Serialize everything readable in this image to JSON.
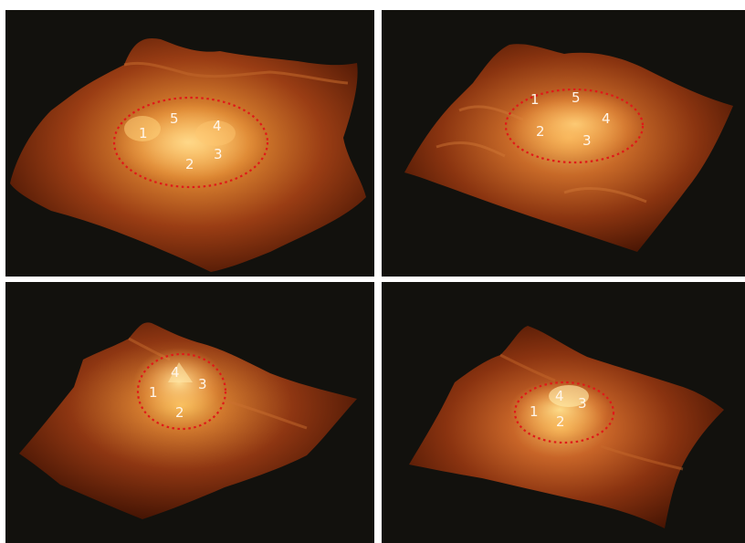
{
  "panels": [
    {
      "id": "top-left",
      "labels": [
        "1",
        "5",
        "4",
        "2",
        "3"
      ]
    },
    {
      "id": "top-right",
      "labels": [
        "1",
        "5",
        "4",
        "2",
        "3"
      ]
    },
    {
      "id": "bottom-left",
      "labels": [
        "4",
        "3",
        "1",
        "2"
      ]
    },
    {
      "id": "bottom-right",
      "labels": [
        "4",
        "3",
        "1",
        "2"
      ]
    }
  ],
  "colors": {
    "background": "#12110d",
    "surface_dark": "#5a1c06",
    "surface_mid": "#a8481a",
    "surface_light": "#f2b85c",
    "ellipse": "#e01919",
    "label_text": "#fff6ea",
    "divider": "#ffffff"
  }
}
